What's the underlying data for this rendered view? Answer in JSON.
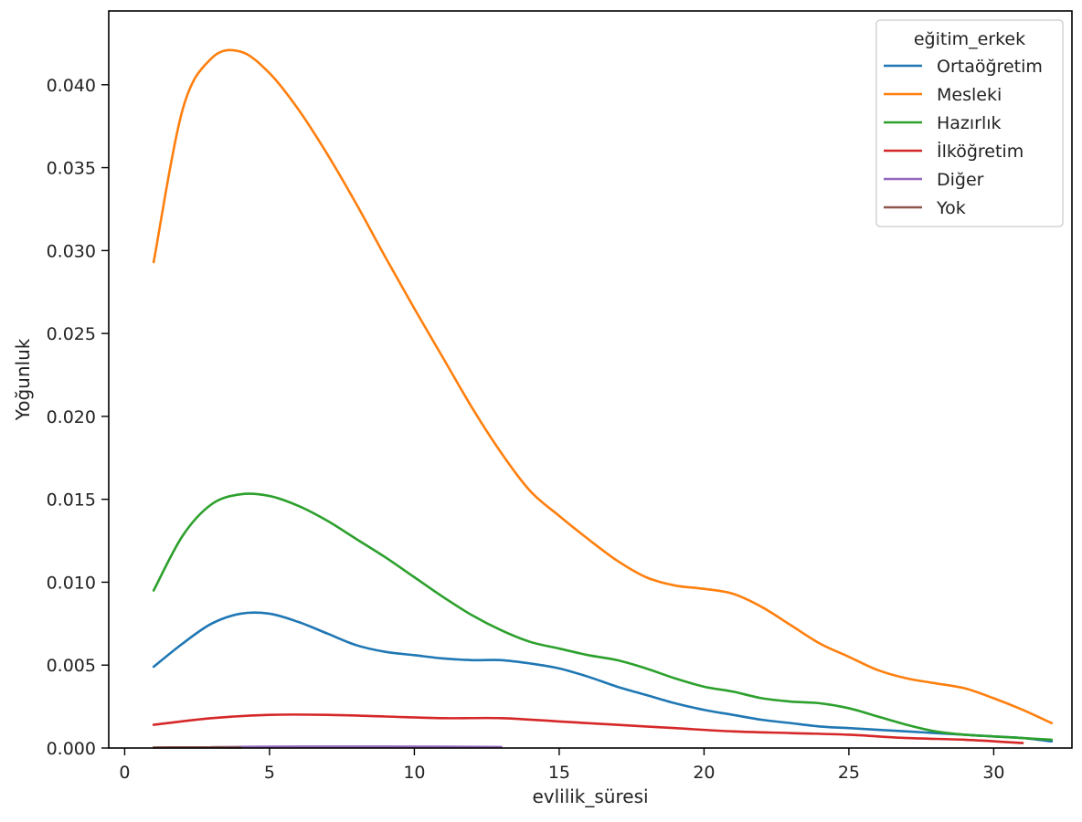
{
  "chart_data": {
    "type": "line",
    "title": "",
    "xlabel": "evlilik_süresi",
    "ylabel": "Yoğunluk",
    "xlim": [
      -0.55,
      32.7
    ],
    "ylim": [
      0,
      0.04445
    ],
    "xticks": [
      0,
      5,
      10,
      15,
      20,
      25,
      30
    ],
    "xtick_labels": [
      "0",
      "5",
      "10",
      "15",
      "20",
      "25",
      "30"
    ],
    "yticks": [
      0,
      0.005,
      0.01,
      0.015,
      0.02,
      0.025,
      0.03,
      0.035,
      0.04
    ],
    "ytick_labels": [
      "0.000",
      "0.005",
      "0.010",
      "0.015",
      "0.020",
      "0.025",
      "0.030",
      "0.035",
      "0.040"
    ],
    "grid": false,
    "legend": {
      "title": "eğitim_erkek",
      "position": "top-right",
      "entries": [
        "Ortaöğretim",
        "Mesleki",
        "Hazırlık",
        "İlköğretim",
        "Diğer",
        "Yok"
      ]
    },
    "series": [
      {
        "name": "Ortaöğretim",
        "color": "#1f77b4",
        "x": [
          1,
          2,
          3,
          4,
          5,
          6,
          7,
          8,
          9,
          10,
          11,
          12,
          13,
          14,
          15,
          16,
          17,
          18,
          19,
          20,
          21,
          22,
          23,
          24,
          25,
          26,
          27,
          28,
          29,
          30,
          31,
          32
        ],
        "y": [
          0.0049,
          0.0063,
          0.0075,
          0.0081,
          0.0081,
          0.0076,
          0.0069,
          0.0062,
          0.0058,
          0.0056,
          0.0054,
          0.0053,
          0.0053,
          0.0051,
          0.0048,
          0.0043,
          0.0037,
          0.0032,
          0.0027,
          0.0023,
          0.002,
          0.0017,
          0.0015,
          0.0013,
          0.0012,
          0.0011,
          0.001,
          0.0009,
          0.0008,
          0.0007,
          0.0006,
          0.0004
        ]
      },
      {
        "name": "Mesleki",
        "color": "#ff7f0e",
        "x": [
          1,
          2,
          3,
          4,
          5,
          6,
          7,
          8,
          9,
          10,
          11,
          12,
          13,
          14,
          15,
          16,
          17,
          18,
          19,
          20,
          21,
          22,
          23,
          24,
          25,
          26,
          27,
          28,
          29,
          30,
          31,
          32
        ],
        "y": [
          0.0293,
          0.0385,
          0.0416,
          0.042,
          0.0407,
          0.0385,
          0.0358,
          0.0328,
          0.0296,
          0.0265,
          0.0235,
          0.0205,
          0.0178,
          0.0155,
          0.014,
          0.0126,
          0.0113,
          0.0103,
          0.0098,
          0.0096,
          0.0093,
          0.0085,
          0.0074,
          0.0063,
          0.0055,
          0.0047,
          0.0042,
          0.0039,
          0.0036,
          0.003,
          0.0023,
          0.0015
        ]
      },
      {
        "name": "Hazırlık",
        "color": "#2ca02c",
        "x": [
          1,
          2,
          3,
          4,
          5,
          6,
          7,
          8,
          9,
          10,
          11,
          12,
          13,
          14,
          15,
          16,
          17,
          18,
          19,
          20,
          21,
          22,
          23,
          24,
          25,
          26,
          27,
          28,
          29,
          30,
          31,
          32
        ],
        "y": [
          0.0095,
          0.0128,
          0.0147,
          0.0153,
          0.0152,
          0.0146,
          0.0137,
          0.0126,
          0.0115,
          0.0103,
          0.0091,
          0.008,
          0.0071,
          0.0064,
          0.006,
          0.0056,
          0.0053,
          0.0048,
          0.0042,
          0.0037,
          0.0034,
          0.003,
          0.0028,
          0.0027,
          0.0024,
          0.0019,
          0.0014,
          0.001,
          0.0008,
          0.0007,
          0.0006,
          0.0005
        ]
      },
      {
        "name": "İlköğretim",
        "color": "#d62728",
        "x": [
          1,
          3,
          5,
          7,
          9,
          11,
          13,
          15,
          17,
          19,
          21,
          23,
          25,
          27,
          29,
          31
        ],
        "y": [
          0.0014,
          0.0018,
          0.002,
          0.002,
          0.0019,
          0.0018,
          0.0018,
          0.0016,
          0.0014,
          0.0012,
          0.001,
          0.0009,
          0.0008,
          0.0006,
          0.0005,
          0.0003
        ]
      },
      {
        "name": "Diğer",
        "color": "#9467bd",
        "x": [
          3,
          5,
          7,
          9,
          11,
          13
        ],
        "y": [
          5e-05,
          8e-05,
          9e-05,
          9e-05,
          8e-05,
          6e-05
        ]
      },
      {
        "name": "Yok",
        "color": "#8c564b",
        "x": [
          1,
          2,
          3,
          4
        ],
        "y": [
          3e-05,
          4e-05,
          4e-05,
          3e-05
        ]
      }
    ]
  }
}
